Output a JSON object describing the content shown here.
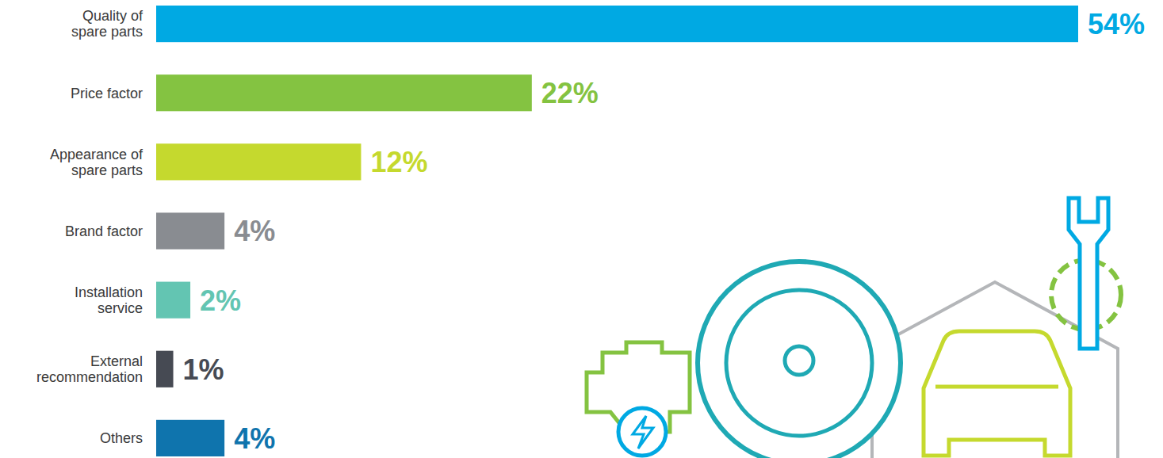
{
  "chart_data": {
    "type": "bar",
    "orientation": "horizontal",
    "categories": [
      "Quality of spare parts",
      "Price factor",
      "Appearance of spare parts",
      "Brand factor",
      "Installation service",
      "External recommendation",
      "Others"
    ],
    "values": [
      54,
      22,
      12,
      4,
      2,
      1,
      4
    ],
    "value_labels": [
      "54%",
      "22%",
      "12%",
      "4%",
      "2%",
      "1%",
      "4%"
    ],
    "colors": [
      "#00a9e3",
      "#84c341",
      "#c5d92e",
      "#898c91",
      "#63c5b2",
      "#464a53",
      "#0f74ad"
    ],
    "xlim": [
      0,
      54
    ],
    "data_labels": true,
    "tick_labels": "y",
    "grid": false
  }
}
